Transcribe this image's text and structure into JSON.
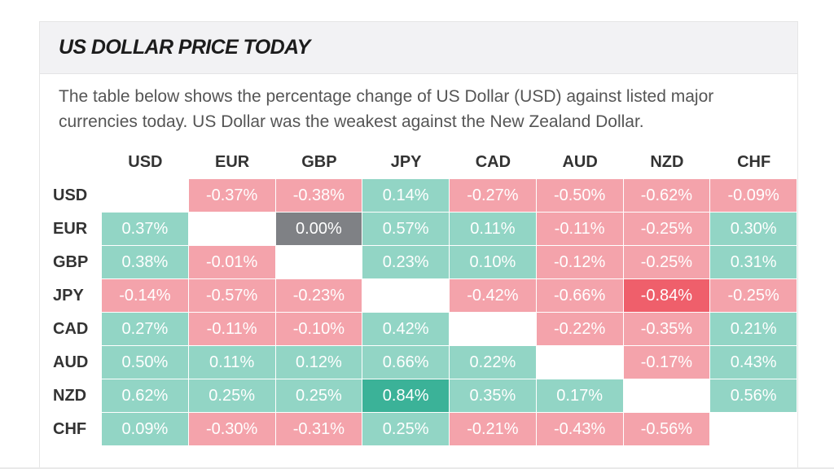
{
  "title": "US DOLLAR PRICE TODAY",
  "description": "The table below shows the percentage change of US Dollar (USD) against listed major currencies today. US Dollar was the weakest against the New Zealand Dollar.",
  "colors": {
    "positive": "#92d5c5",
    "negative": "#f4a3ab",
    "strong_positive": "#3bb298",
    "strong_negative": "#ef5f6b",
    "neutral": "#7f8185",
    "empty": "#ffffff"
  },
  "currencies": [
    "USD",
    "EUR",
    "GBP",
    "JPY",
    "CAD",
    "AUD",
    "NZD",
    "CHF"
  ],
  "rows": [
    {
      "currency": "USD",
      "cells": [
        "",
        "-0.37%",
        "-0.38%",
        "0.14%",
        "-0.27%",
        "-0.50%",
        "-0.62%",
        "-0.09%"
      ]
    },
    {
      "currency": "EUR",
      "cells": [
        "0.37%",
        "",
        "0.00%",
        "0.57%",
        "0.11%",
        "-0.11%",
        "-0.25%",
        "0.30%"
      ]
    },
    {
      "currency": "GBP",
      "cells": [
        "0.38%",
        "-0.01%",
        "",
        "0.23%",
        "0.10%",
        "-0.12%",
        "-0.25%",
        "0.31%"
      ]
    },
    {
      "currency": "JPY",
      "cells": [
        "-0.14%",
        "-0.57%",
        "-0.23%",
        "",
        "-0.42%",
        "-0.66%",
        "-0.84%",
        "-0.25%"
      ]
    },
    {
      "currency": "CAD",
      "cells": [
        "0.27%",
        "-0.11%",
        "-0.10%",
        "0.42%",
        "",
        "-0.22%",
        "-0.35%",
        "0.21%"
      ]
    },
    {
      "currency": "AUD",
      "cells": [
        "0.50%",
        "0.11%",
        "0.12%",
        "0.66%",
        "0.22%",
        "",
        "-0.17%",
        "0.43%"
      ]
    },
    {
      "currency": "NZD",
      "cells": [
        "0.62%",
        "0.25%",
        "0.25%",
        "0.84%",
        "0.35%",
        "0.17%",
        "",
        "0.56%"
      ]
    },
    {
      "currency": "CHF",
      "cells": [
        "0.09%",
        "-0.30%",
        "-0.31%",
        "0.25%",
        "-0.21%",
        "-0.43%",
        "-0.56%",
        ""
      ]
    }
  ]
}
